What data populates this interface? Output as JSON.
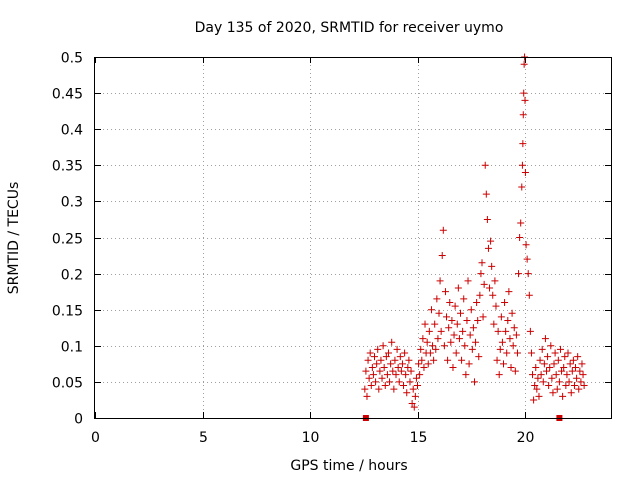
{
  "chart_data": {
    "type": "scatter",
    "title": "Day 135 of 2020, SRMTID for receiver uymo",
    "xlabel": "GPS time / hours",
    "ylabel": "SRMTID / TECUs",
    "xlim": [
      0,
      24
    ],
    "ylim": [
      0,
      0.5
    ],
    "x_ticks": [
      0,
      5,
      10,
      15,
      20
    ],
    "x_tick_labels": [
      "0",
      "5",
      "10",
      "15",
      "20"
    ],
    "y_ticks": [
      0,
      0.05,
      0.1,
      0.15,
      0.2,
      0.25,
      0.3,
      0.35,
      0.4,
      0.45,
      0.5
    ],
    "y_tick_labels": [
      "0",
      "0.05",
      "0.1",
      "0.15",
      "0.2",
      "0.25",
      "0.3",
      "0.35",
      "0.4",
      "0.45",
      "0.5"
    ],
    "grid": true,
    "marker": "+",
    "marker_color": "#cc0000",
    "series": [
      {
        "name": "SRMTID",
        "points": [
          [
            12.55,
            0.04
          ],
          [
            12.6,
            0.065
          ],
          [
            12.65,
            0.03
          ],
          [
            12.7,
            0.08
          ],
          [
            12.75,
            0.055
          ],
          [
            12.8,
            0.09
          ],
          [
            12.85,
            0.045
          ],
          [
            12.9,
            0.07
          ],
          [
            12.95,
            0.06
          ],
          [
            13.0,
            0.085
          ],
          [
            13.05,
            0.05
          ],
          [
            13.1,
            0.075
          ],
          [
            13.15,
            0.095
          ],
          [
            13.2,
            0.04
          ],
          [
            13.25,
            0.065
          ],
          [
            13.3,
            0.08
          ],
          [
            13.35,
            0.055
          ],
          [
            13.4,
            0.1
          ],
          [
            13.45,
            0.07
          ],
          [
            13.5,
            0.045
          ],
          [
            13.55,
            0.085
          ],
          [
            13.6,
            0.06
          ],
          [
            13.65,
            0.09
          ],
          [
            13.7,
            0.05
          ],
          [
            13.75,
            0.075
          ],
          [
            13.8,
            0.105
          ],
          [
            13.85,
            0.065
          ],
          [
            13.9,
            0.04
          ],
          [
            13.95,
            0.08
          ],
          [
            14.0,
            0.06
          ],
          [
            14.05,
            0.095
          ],
          [
            14.1,
            0.07
          ],
          [
            14.15,
            0.05
          ],
          [
            14.2,
            0.085
          ],
          [
            14.25,
            0.065
          ],
          [
            14.3,
            0.075
          ],
          [
            14.35,
            0.045
          ],
          [
            14.4,
            0.09
          ],
          [
            14.45,
            0.06
          ],
          [
            14.5,
            0.035
          ],
          [
            14.55,
            0.07
          ],
          [
            14.6,
            0.08
          ],
          [
            14.65,
            0.05
          ],
          [
            14.7,
            0.065
          ],
          [
            14.75,
            0.02
          ],
          [
            14.8,
            0.04
          ],
          [
            14.85,
            0.015
          ],
          [
            14.9,
            0.03
          ],
          [
            14.95,
            0.055
          ],
          [
            15.0,
            0.045
          ],
          [
            15.05,
            0.075
          ],
          [
            15.1,
            0.06
          ],
          [
            15.15,
            0.095
          ],
          [
            15.2,
            0.08
          ],
          [
            15.25,
            0.11
          ],
          [
            15.3,
            0.07
          ],
          [
            15.35,
            0.13
          ],
          [
            15.4,
            0.09
          ],
          [
            15.45,
            0.105
          ],
          [
            15.5,
            0.075
          ],
          [
            15.55,
            0.12
          ],
          [
            15.6,
            0.09
          ],
          [
            15.65,
            0.15
          ],
          [
            15.7,
            0.1
          ],
          [
            15.75,
            0.08
          ],
          [
            15.8,
            0.13
          ],
          [
            15.85,
            0.095
          ],
          [
            15.9,
            0.165
          ],
          [
            15.95,
            0.11
          ],
          [
            16.0,
            0.145
          ],
          [
            16.05,
            0.19
          ],
          [
            16.1,
            0.12
          ],
          [
            16.15,
            0.225
          ],
          [
            16.2,
            0.26
          ],
          [
            16.25,
            0.1
          ],
          [
            16.3,
            0.175
          ],
          [
            16.35,
            0.14
          ],
          [
            16.4,
            0.08
          ],
          [
            16.45,
            0.125
          ],
          [
            16.5,
            0.16
          ],
          [
            16.55,
            0.105
          ],
          [
            16.6,
            0.135
          ],
          [
            16.65,
            0.07
          ],
          [
            16.7,
            0.115
          ],
          [
            16.75,
            0.155
          ],
          [
            16.8,
            0.09
          ],
          [
            16.85,
            0.13
          ],
          [
            16.9,
            0.18
          ],
          [
            16.95,
            0.11
          ],
          [
            17.0,
            0.145
          ],
          [
            17.05,
            0.08
          ],
          [
            17.1,
            0.12
          ],
          [
            17.15,
            0.165
          ],
          [
            17.2,
            0.1
          ],
          [
            17.25,
            0.06
          ],
          [
            17.3,
            0.135
          ],
          [
            17.35,
            0.19
          ],
          [
            17.4,
            0.075
          ],
          [
            17.45,
            0.115
          ],
          [
            17.5,
            0.15
          ],
          [
            17.55,
            0.095
          ],
          [
            17.6,
            0.125
          ],
          [
            17.65,
            0.05
          ],
          [
            17.7,
            0.105
          ],
          [
            17.75,
            0.16
          ],
          [
            17.8,
            0.135
          ],
          [
            17.85,
            0.085
          ],
          [
            17.9,
            0.17
          ],
          [
            17.95,
            0.2
          ],
          [
            18.0,
            0.215
          ],
          [
            18.05,
            0.14
          ],
          [
            18.1,
            0.185
          ],
          [
            18.15,
            0.35
          ],
          [
            18.2,
            0.31
          ],
          [
            18.25,
            0.275
          ],
          [
            18.3,
            0.235
          ],
          [
            18.35,
            0.18
          ],
          [
            18.4,
            0.245
          ],
          [
            18.45,
            0.21
          ],
          [
            18.5,
            0.17
          ],
          [
            18.55,
            0.13
          ],
          [
            18.6,
            0.19
          ],
          [
            18.65,
            0.155
          ],
          [
            18.7,
            0.08
          ],
          [
            18.75,
            0.12
          ],
          [
            18.8,
            0.06
          ],
          [
            18.85,
            0.095
          ],
          [
            18.9,
            0.14
          ],
          [
            18.95,
            0.105
          ],
          [
            19.0,
            0.075
          ],
          [
            19.05,
            0.16
          ],
          [
            19.1,
            0.12
          ],
          [
            19.15,
            0.09
          ],
          [
            19.2,
            0.135
          ],
          [
            19.25,
            0.175
          ],
          [
            19.3,
            0.11
          ],
          [
            19.35,
            0.07
          ],
          [
            19.4,
            0.145
          ],
          [
            19.45,
            0.1
          ],
          [
            19.5,
            0.125
          ],
          [
            19.55,
            0.065
          ],
          [
            19.6,
            0.115
          ],
          [
            19.65,
            0.09
          ],
          [
            19.7,
            0.2
          ],
          [
            19.75,
            0.25
          ],
          [
            19.8,
            0.27
          ],
          [
            19.85,
            0.32
          ],
          [
            19.88,
            0.35
          ],
          [
            19.9,
            0.38
          ],
          [
            19.92,
            0.42
          ],
          [
            19.94,
            0.45
          ],
          [
            19.96,
            0.49
          ],
          [
            19.98,
            0.5
          ],
          [
            20.0,
            0.44
          ],
          [
            20.02,
            0.34
          ],
          [
            20.05,
            0.24
          ],
          [
            20.1,
            0.22
          ],
          [
            20.15,
            0.2
          ],
          [
            20.2,
            0.17
          ],
          [
            20.25,
            0.12
          ],
          [
            20.3,
            0.09
          ],
          [
            20.35,
            0.06
          ],
          [
            20.4,
            0.025
          ],
          [
            20.45,
            0.045
          ],
          [
            20.5,
            0.07
          ],
          [
            20.55,
            0.04
          ],
          [
            20.6,
            0.055
          ],
          [
            20.65,
            0.03
          ],
          [
            20.7,
            0.08
          ],
          [
            20.75,
            0.06
          ],
          [
            20.8,
            0.095
          ],
          [
            20.85,
            0.05
          ],
          [
            20.9,
            0.075
          ],
          [
            20.95,
            0.11
          ],
          [
            21.0,
            0.065
          ],
          [
            21.05,
            0.085
          ],
          [
            21.1,
            0.045
          ],
          [
            21.15,
            0.07
          ],
          [
            21.2,
            0.1
          ],
          [
            21.25,
            0.055
          ],
          [
            21.3,
            0.035
          ],
          [
            21.35,
            0.075
          ],
          [
            21.4,
            0.09
          ],
          [
            21.45,
            0.06
          ],
          [
            21.5,
            0.04
          ],
          [
            21.55,
            0.08
          ],
          [
            21.6,
            0.05
          ],
          [
            21.65,
            0.095
          ],
          [
            21.7,
            0.065
          ],
          [
            21.75,
            0.03
          ],
          [
            21.8,
            0.07
          ],
          [
            21.85,
            0.085
          ],
          [
            21.9,
            0.045
          ],
          [
            21.95,
            0.06
          ],
          [
            22.0,
            0.09
          ],
          [
            22.05,
            0.05
          ],
          [
            22.1,
            0.075
          ],
          [
            22.15,
            0.035
          ],
          [
            22.2,
            0.065
          ],
          [
            22.25,
            0.08
          ],
          [
            22.3,
            0.045
          ],
          [
            22.35,
            0.07
          ],
          [
            22.4,
            0.055
          ],
          [
            22.45,
            0.085
          ],
          [
            22.5,
            0.04
          ],
          [
            22.55,
            0.065
          ],
          [
            22.6,
            0.05
          ],
          [
            22.65,
            0.075
          ],
          [
            22.7,
            0.06
          ],
          [
            22.75,
            0.045
          ]
        ]
      }
    ],
    "axis_markers": [
      12.6,
      21.6
    ]
  }
}
